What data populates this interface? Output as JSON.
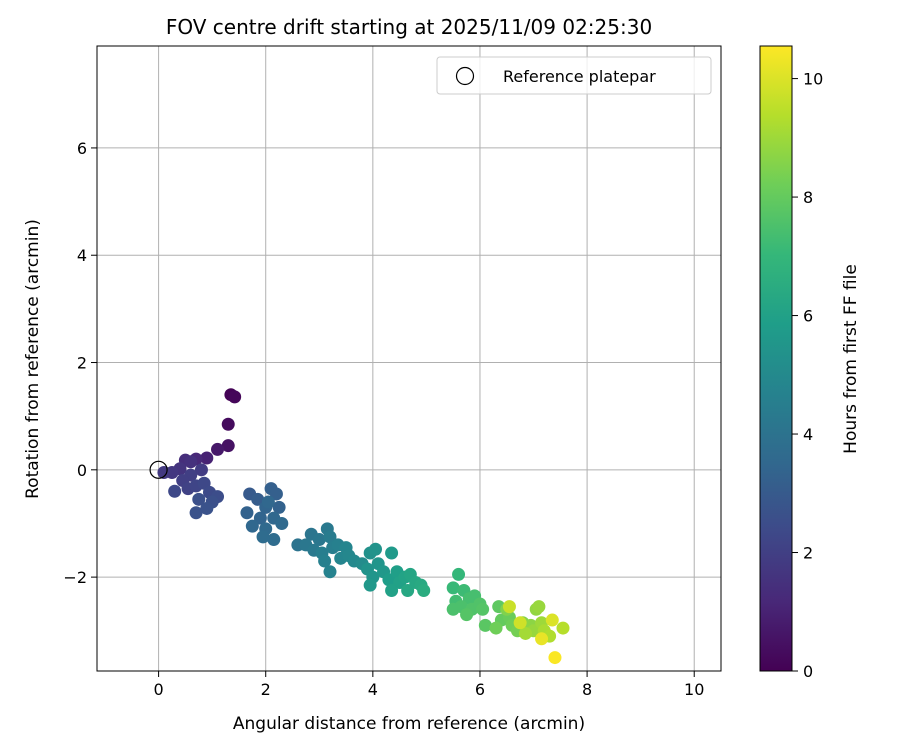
{
  "chart_data": {
    "type": "scatter",
    "title": "FOV centre drift starting at 2025/11/09 02:25:30",
    "xlabel": "Angular distance from reference (arcmin)",
    "ylabel": "Rotation from reference (arcmin)",
    "xlim": [
      -1.15,
      10.5
    ],
    "ylim": [
      -3.75,
      7.9
    ],
    "xticks": [
      0,
      2,
      4,
      6,
      8,
      10
    ],
    "yticks": [
      -2,
      0,
      2,
      4,
      6
    ],
    "xtick_labels": [
      "0",
      "2",
      "4",
      "6",
      "8",
      "10"
    ],
    "ytick_labels": [
      "−2",
      "0",
      "2",
      "4",
      "6"
    ],
    "grid": true,
    "legend": {
      "position": "top-right",
      "entries": [
        "Reference platepar"
      ]
    },
    "reference_point": {
      "x": 0,
      "y": 0,
      "label": "Reference platepar"
    },
    "colorbar": {
      "label": "Hours from first FF file",
      "range": [
        0,
        10.55
      ],
      "ticks": [
        0,
        2,
        4,
        6,
        8,
        10
      ],
      "tick_labels": [
        "0",
        "2",
        "4",
        "6",
        "8",
        "10"
      ],
      "colormap": [
        "#440154",
        "#482878",
        "#3e4989",
        "#31688e",
        "#26828e",
        "#1f9e89",
        "#35b779",
        "#6ece58",
        "#b5de2b",
        "#fde725"
      ]
    },
    "series": [
      {
        "name": "FOV centre",
        "points": [
          [
            1.35,
            1.4,
            0.05
          ],
          [
            1.42,
            1.36,
            0.15
          ],
          [
            1.3,
            0.85,
            0.3
          ],
          [
            1.3,
            0.45,
            0.5
          ],
          [
            1.1,
            0.38,
            0.7
          ],
          [
            0.9,
            0.22,
            1.0
          ],
          [
            0.7,
            0.2,
            1.2
          ],
          [
            0.5,
            0.18,
            1.4
          ],
          [
            0.6,
            0.15,
            1.5
          ],
          [
            0.4,
            0.02,
            1.6
          ],
          [
            0.25,
            -0.05,
            1.7
          ],
          [
            0.1,
            -0.05,
            1.8
          ],
          [
            0.8,
            0.0,
            1.9
          ],
          [
            0.6,
            -0.1,
            2.0
          ],
          [
            0.45,
            -0.2,
            2.0
          ],
          [
            0.55,
            -0.35,
            2.1
          ],
          [
            0.7,
            -0.3,
            2.2
          ],
          [
            0.85,
            -0.25,
            2.3
          ],
          [
            0.3,
            -0.4,
            2.3
          ],
          [
            0.95,
            -0.42,
            2.4
          ],
          [
            1.1,
            -0.5,
            2.5
          ],
          [
            1.0,
            -0.6,
            2.6
          ],
          [
            0.75,
            -0.55,
            2.6
          ],
          [
            0.9,
            -0.72,
            2.7
          ],
          [
            0.7,
            -0.8,
            2.7
          ],
          [
            1.7,
            -0.45,
            3.0
          ],
          [
            1.85,
            -0.55,
            3.1
          ],
          [
            2.1,
            -0.35,
            3.2
          ],
          [
            2.2,
            -0.45,
            3.2
          ],
          [
            2.25,
            -0.7,
            3.3
          ],
          [
            1.65,
            -0.8,
            3.3
          ],
          [
            2.0,
            -0.7,
            3.4
          ],
          [
            1.9,
            -0.9,
            3.4
          ],
          [
            2.15,
            -0.9,
            3.5
          ],
          [
            1.75,
            -1.05,
            3.5
          ],
          [
            2.0,
            -1.1,
            3.6
          ],
          [
            2.3,
            -1.0,
            3.6
          ],
          [
            2.15,
            -1.3,
            3.7
          ],
          [
            1.95,
            -1.25,
            3.7
          ],
          [
            2.05,
            -0.6,
            3.5
          ],
          [
            2.6,
            -1.4,
            4.0
          ],
          [
            2.85,
            -1.2,
            4.1
          ],
          [
            2.75,
            -1.4,
            4.2
          ],
          [
            3.0,
            -1.3,
            4.2
          ],
          [
            2.9,
            -1.5,
            4.3
          ],
          [
            3.15,
            -1.1,
            4.3
          ],
          [
            3.2,
            -1.25,
            4.4
          ],
          [
            3.05,
            -1.55,
            4.5
          ],
          [
            3.25,
            -1.45,
            4.5
          ],
          [
            3.1,
            -1.7,
            4.6
          ],
          [
            3.35,
            -1.4,
            4.6
          ],
          [
            3.2,
            -1.9,
            4.7
          ],
          [
            3.4,
            -1.65,
            4.8
          ],
          [
            3.5,
            -1.45,
            4.8
          ],
          [
            3.55,
            -1.6,
            4.9
          ],
          [
            3.65,
            -1.7,
            5.0
          ],
          [
            3.8,
            -1.75,
            5.1
          ],
          [
            3.95,
            -1.55,
            5.3
          ],
          [
            4.05,
            -1.48,
            5.4
          ],
          [
            3.9,
            -1.85,
            5.4
          ],
          [
            4.1,
            -1.75,
            5.5
          ],
          [
            4.0,
            -2.0,
            5.5
          ],
          [
            3.95,
            -2.15,
            5.6
          ],
          [
            4.2,
            -1.9,
            5.6
          ],
          [
            4.35,
            -1.55,
            5.7
          ],
          [
            4.3,
            -2.05,
            5.8
          ],
          [
            4.45,
            -1.9,
            5.9
          ],
          [
            4.5,
            -2.1,
            6.0
          ],
          [
            4.35,
            -2.25,
            6.0
          ],
          [
            4.6,
            -2.0,
            6.1
          ],
          [
            4.7,
            -1.95,
            6.2
          ],
          [
            4.8,
            -2.1,
            6.3
          ],
          [
            4.65,
            -2.25,
            6.3
          ],
          [
            4.9,
            -2.15,
            6.4
          ],
          [
            4.95,
            -2.25,
            6.5
          ],
          [
            5.6,
            -1.95,
            7.0
          ],
          [
            5.5,
            -2.2,
            7.1
          ],
          [
            5.7,
            -2.25,
            7.2
          ],
          [
            5.55,
            -2.45,
            7.3
          ],
          [
            5.8,
            -2.4,
            7.4
          ],
          [
            5.9,
            -2.35,
            7.4
          ],
          [
            5.65,
            -2.55,
            7.5
          ],
          [
            5.5,
            -2.6,
            7.5
          ],
          [
            5.85,
            -2.6,
            7.6
          ],
          [
            6.0,
            -2.5,
            7.6
          ],
          [
            5.75,
            -2.7,
            7.7
          ],
          [
            6.05,
            -2.6,
            7.7
          ],
          [
            6.1,
            -2.9,
            7.8
          ],
          [
            6.35,
            -2.55,
            7.9
          ],
          [
            6.4,
            -2.8,
            8.0
          ],
          [
            6.55,
            -2.75,
            8.1
          ],
          [
            6.6,
            -2.9,
            8.2
          ],
          [
            6.3,
            -2.95,
            8.2
          ],
          [
            6.7,
            -3.0,
            8.3
          ],
          [
            6.5,
            -2.6,
            8.5
          ],
          [
            6.8,
            -2.85,
            8.6
          ],
          [
            6.95,
            -2.9,
            8.7
          ],
          [
            7.05,
            -2.6,
            8.8
          ],
          [
            7.1,
            -2.55,
            8.9
          ],
          [
            7.0,
            -3.0,
            8.9
          ],
          [
            7.15,
            -2.85,
            9.0
          ],
          [
            6.85,
            -3.05,
            9.1
          ],
          [
            7.2,
            -3.0,
            9.2
          ],
          [
            7.3,
            -3.1,
            9.3
          ],
          [
            7.55,
            -2.95,
            9.4
          ],
          [
            6.55,
            -2.55,
            9.7
          ],
          [
            6.75,
            -2.85,
            9.8
          ],
          [
            7.35,
            -2.8,
            10.0
          ],
          [
            7.15,
            -3.15,
            10.2
          ],
          [
            7.4,
            -3.5,
            10.5
          ]
        ]
      }
    ]
  }
}
